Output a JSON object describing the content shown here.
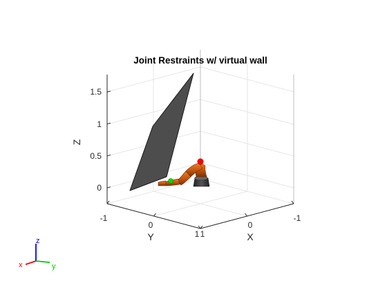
{
  "chart_data": {
    "type": "3d-scene",
    "title": "Joint Restraints w/ virtual wall",
    "xlabel": "X",
    "ylabel": "Y",
    "zlabel": "Z",
    "x_ticks": [
      "1",
      "0",
      "-1"
    ],
    "y_ticks": [
      "-1",
      "0",
      "1"
    ],
    "z_ticks": [
      "0",
      "0.5",
      "1",
      "1.5"
    ],
    "xlim": [
      -1,
      1
    ],
    "ylim": [
      -1,
      1
    ],
    "zlim": [
      -0.25,
      1.75
    ],
    "grid": true,
    "objects": [
      {
        "name": "virtual wall",
        "kind": "plane",
        "color": "#4d4d4d"
      },
      {
        "name": "robot arm",
        "kind": "robot",
        "color": "#c8580e",
        "base_color": "#3a3a3a"
      },
      {
        "name": "target",
        "kind": "marker",
        "color": "#ff0000"
      },
      {
        "name": "end effector",
        "kind": "marker",
        "color": "#00dd00"
      }
    ],
    "orientation_triad": {
      "x": "x",
      "y": "y",
      "z": "z",
      "x_color": "#ff0000",
      "y_color": "#00cc00",
      "z_color": "#0000ff"
    }
  }
}
